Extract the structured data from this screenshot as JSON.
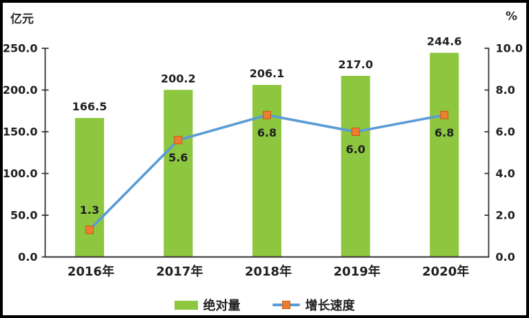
{
  "chart_data": {
    "type": "bar",
    "subtype": "combo-bar-line",
    "categories": [
      "2016年",
      "2017年",
      "2018年",
      "2019年",
      "2020年"
    ],
    "series": [
      {
        "name": "绝对量",
        "type": "bar",
        "axis": "left",
        "color": "#8DC63F",
        "values": [
          166.5,
          200.2,
          206.1,
          217.0,
          244.6
        ],
        "labels": [
          "166.5",
          "200.2",
          "206.1",
          "217.0",
          "244.6"
        ]
      },
      {
        "name": "增长速度",
        "type": "line",
        "axis": "right",
        "color": "#5B9BD5",
        "marker": "square",
        "marker_color": "#ED7D31",
        "marker_border": "#C55A11",
        "values": [
          1.3,
          5.6,
          6.8,
          6.0,
          6.8
        ],
        "labels": [
          "1.3",
          "5.6",
          "6.8",
          "6.0",
          "6.8"
        ]
      }
    ],
    "left_axis": {
      "unit": "亿元",
      "min": 0,
      "max": 250,
      "tick_labels": [
        "0.0",
        "50.0",
        "100.0",
        "150.0",
        "200.0",
        "250.0"
      ]
    },
    "right_axis": {
      "unit": "%",
      "min": 0,
      "max": 10,
      "tick_labels": [
        "0.0",
        "2.0",
        "4.0",
        "6.0",
        "8.0",
        "10.0"
      ]
    },
    "legend_position": "bottom",
    "gridlines": false
  },
  "style": {
    "frame_border_color": "#000000",
    "background": "#FFFFFF",
    "axis_color": "#333333",
    "text_color": "#1F1F1F"
  }
}
